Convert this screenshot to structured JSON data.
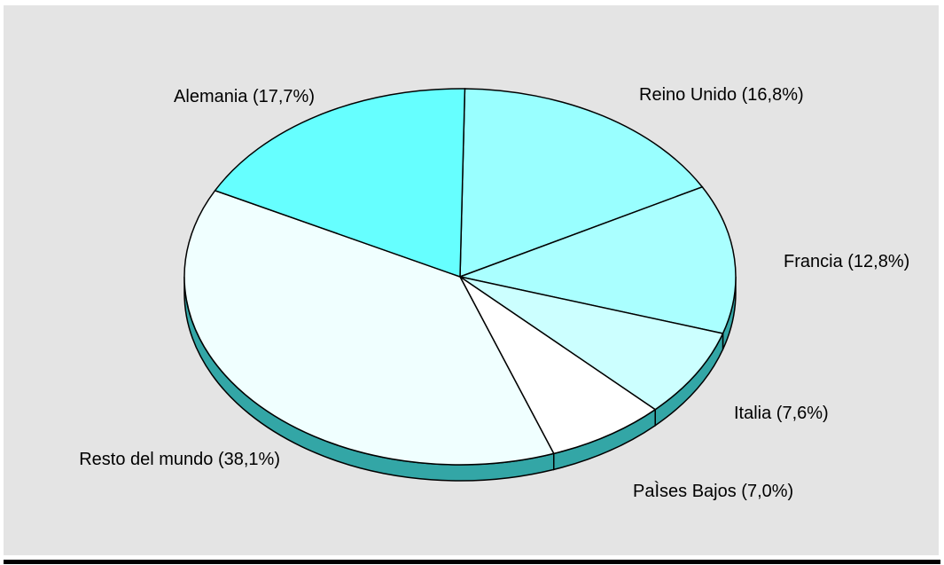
{
  "chart_data": {
    "type": "pie",
    "categories": [
      "Alemania",
      "Reino Unido",
      "Francia",
      "Italia",
      "PaÌses Bajos",
      "Resto del mundo"
    ],
    "values": [
      17.7,
      16.8,
      12.8,
      7.6,
      7.0,
      38.1
    ],
    "labels": [
      "Alemania (17,7%)",
      "Reino Unido (16,8%)",
      "Francia (12,8%)",
      "Italia (7,6%)",
      "PaÌses Bajos (7,0%)",
      "Resto del mundo (38,1%)"
    ],
    "colors": [
      "#66ffff",
      "#99ffff",
      "#aaffff",
      "#ccffff",
      "#ffffff",
      "#f0ffff"
    ],
    "edge_color": "#33a6a6",
    "background_color": "#e4e4e4",
    "three_d": true,
    "title": ""
  }
}
